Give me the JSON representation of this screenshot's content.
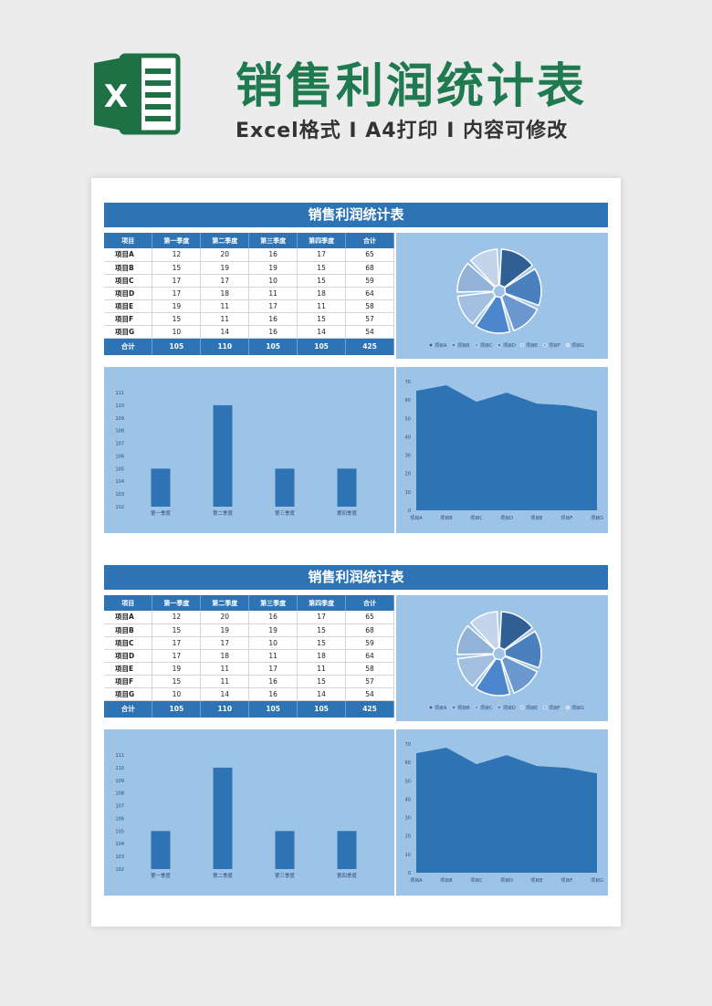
{
  "header": {
    "logo_letter": "X",
    "title": "销售利润统计表",
    "subtitle": "Excel格式 Ⅰ A4打印 Ⅰ 内容可修改"
  },
  "colors": {
    "title_green": "#1f7a4f",
    "bar_blue": "#2e74b5",
    "panel_blue": "#9dc3e6",
    "logo_green": "#1e7145"
  },
  "sheet": {
    "title": "销售利润统计表",
    "headers": [
      "项目",
      "第一季度",
      "第二季度",
      "第三季度",
      "第四季度",
      "合计"
    ],
    "rows": [
      {
        "label": "项目A",
        "values": [
          "12",
          "20",
          "16",
          "17",
          "65"
        ]
      },
      {
        "label": "项目B",
        "values": [
          "15",
          "19",
          "19",
          "15",
          "68"
        ]
      },
      {
        "label": "项目C",
        "values": [
          "17",
          "17",
          "10",
          "15",
          "59"
        ]
      },
      {
        "label": "项目D",
        "values": [
          "17",
          "18",
          "11",
          "18",
          "64"
        ]
      },
      {
        "label": "项目E",
        "values": [
          "19",
          "11",
          "17",
          "11",
          "58"
        ]
      },
      {
        "label": "项目F",
        "values": [
          "15",
          "11",
          "16",
          "15",
          "57"
        ]
      },
      {
        "label": "项目G",
        "values": [
          "10",
          "14",
          "16",
          "14",
          "54"
        ]
      }
    ],
    "total": {
      "label": "合计",
      "values": [
        "105",
        "110",
        "105",
        "105",
        "425"
      ]
    }
  },
  "chart_data": [
    {
      "type": "pie",
      "categories": [
        "项目A",
        "项目B",
        "项目C",
        "项目D",
        "项目E",
        "项目F",
        "项目G"
      ],
      "values": [
        65,
        68,
        59,
        64,
        58,
        57,
        54
      ],
      "legend": "bottom"
    },
    {
      "type": "bar",
      "categories": [
        "第一季度",
        "第二季度",
        "第三季度",
        "第四季度"
      ],
      "values": [
        105,
        110,
        105,
        105
      ],
      "yticks": [
        "102",
        "103",
        "104",
        "105",
        "106",
        "107",
        "108",
        "109",
        "110",
        "111"
      ],
      "ylim": [
        102,
        111
      ]
    },
    {
      "type": "area",
      "categories": [
        "项目A",
        "项目B",
        "项目C",
        "项目D",
        "项目E",
        "项目F",
        "项目G"
      ],
      "values": [
        65,
        68,
        59,
        64,
        58,
        57,
        54
      ],
      "yticks": [
        "0",
        "10",
        "20",
        "30",
        "40",
        "50",
        "60",
        "70"
      ],
      "ylim": [
        0,
        70
      ]
    }
  ]
}
